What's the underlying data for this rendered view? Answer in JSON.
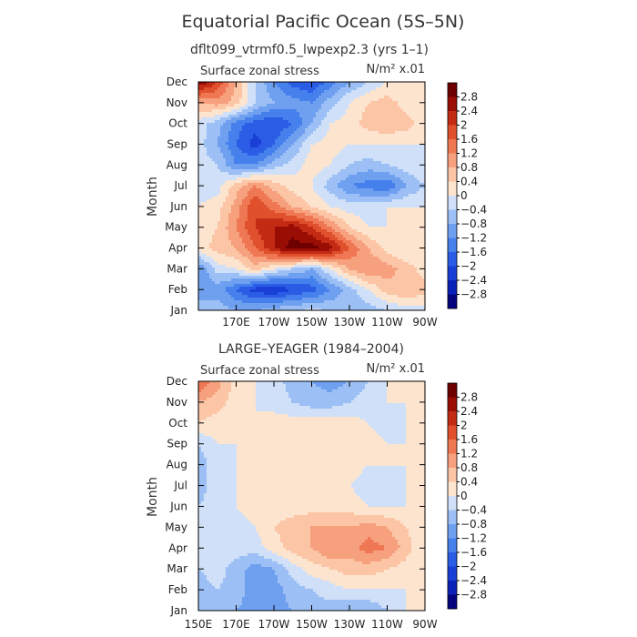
{
  "figure": {
    "title": "Equatorial Pacific Ocean (5S–5N)"
  },
  "chart_data": [
    {
      "type": "heatmap",
      "title": "dflt099_vtrmf0.5_lwpexp2.3 (yrs 1–1)",
      "subtitle": "Surface zonal stress",
      "units_label": "N/m² x.01",
      "ylabel": "Month",
      "xlabel": "",
      "x_ticks": [
        "",
        "170E",
        "170W",
        "150W",
        "130W",
        "110W",
        "90W"
      ],
      "y_ticks": [
        "Jan",
        "Feb",
        "Mar",
        "Apr",
        "May",
        "Jun",
        "Jul",
        "Aug",
        "Sep",
        "Oct",
        "Nov",
        "Dec"
      ],
      "x_range_deg_east": [
        150,
        270
      ],
      "levels": [
        -2.8,
        -2.4,
        -2,
        -1.6,
        -1.2,
        -0.8,
        -0.4,
        0,
        0.4,
        0.8,
        1.2,
        1.6,
        2,
        2.4,
        2.8
      ],
      "level_labels": [
        "2.8",
        "2.4",
        "2",
        "1.6",
        "1.2",
        "0.8",
        "0.4",
        "0",
        "−0.4",
        "−0.8",
        "−1.2",
        "−1.6",
        "−2",
        "−2.4",
        "−2.8"
      ],
      "colors": [
        "#04047e",
        "#0a22b8",
        "#1a3fd6",
        "#2a5ce6",
        "#4680ec",
        "#6fa0f0",
        "#9cc0f5",
        "#cfe0f8",
        "#fde4cf",
        "#fbc5a6",
        "#f6a07e",
        "#ef7753",
        "#e0502d",
        "#c32b14",
        "#990d04",
        "#6e0000"
      ],
      "grid_months": [
        1,
        2,
        3,
        4,
        5,
        6,
        7,
        8,
        9,
        10,
        11,
        12
      ],
      "grid_lon": [
        150,
        160,
        170,
        180,
        190,
        200,
        210,
        220,
        230,
        240,
        250,
        260,
        270
      ],
      "z": [
        [
          -0.4,
          -0.6,
          -0.8,
          -0.8,
          -0.6,
          -0.4,
          -0.3,
          -0.4,
          -0.6,
          -0.6,
          -0.4,
          -0.2,
          -0.2
        ],
        [
          -1.2,
          -1.0,
          -1.6,
          -2.2,
          -2.4,
          -2.0,
          -1.8,
          -1.2,
          -0.6,
          0.0,
          0.6,
          0.8,
          0.6
        ],
        [
          -1.2,
          -0.2,
          0.0,
          0.6,
          0.0,
          -0.4,
          -0.8,
          0.0,
          0.8,
          1.2,
          1.0,
          0.6,
          0.2
        ],
        [
          0.2,
          0.6,
          0.8,
          1.6,
          2.4,
          3.0,
          3.0,
          2.6,
          1.6,
          0.8,
          0.2,
          0.0,
          0.0
        ],
        [
          0.0,
          0.4,
          1.2,
          2.0,
          2.4,
          2.6,
          2.0,
          1.2,
          0.4,
          0.0,
          0.0,
          0.0,
          0.0
        ],
        [
          0.0,
          0.2,
          1.0,
          2.0,
          1.4,
          0.8,
          0.4,
          0.0,
          -0.2,
          -0.2,
          0.0,
          0.0,
          0.0
        ],
        [
          -0.2,
          -0.2,
          0.6,
          1.2,
          0.6,
          0.2,
          0.0,
          -0.6,
          -1.2,
          -1.4,
          -1.6,
          -0.8,
          -0.4
        ],
        [
          -0.2,
          -0.4,
          -1.2,
          -1.2,
          -0.6,
          -0.2,
          0.2,
          0.0,
          -0.4,
          -0.6,
          -0.4,
          -0.2,
          0.0
        ],
        [
          -0.2,
          -0.8,
          -1.6,
          -2.2,
          -1.6,
          -0.8,
          0.0,
          0.2,
          0.0,
          0.0,
          0.0,
          0.0,
          0.0
        ],
        [
          -0.2,
          -0.6,
          -1.4,
          -1.8,
          -2.0,
          -1.6,
          -0.8,
          0.0,
          0.2,
          0.6,
          0.8,
          0.6,
          0.2
        ],
        [
          0.8,
          1.0,
          0.6,
          -0.4,
          -0.8,
          -1.0,
          -1.2,
          -0.6,
          0.0,
          0.4,
          0.6,
          0.2,
          0.0
        ],
        [
          2.8,
          2.0,
          0.8,
          -0.4,
          -1.2,
          -1.8,
          -2.0,
          -1.4,
          -0.8,
          -0.4,
          0.0,
          0.0,
          0.0
        ]
      ]
    },
    {
      "type": "heatmap",
      "title": "LARGE–YEAGER (1984–2004)",
      "subtitle": "Surface zonal stress",
      "units_label": "N/m² x.01",
      "ylabel": "Month",
      "xlabel": "",
      "x_ticks": [
        "150E",
        "170E",
        "170W",
        "150W",
        "130W",
        "110W",
        "90W"
      ],
      "y_ticks": [
        "Jan",
        "Feb",
        "Mar",
        "Apr",
        "May",
        "Jun",
        "Jul",
        "Aug",
        "Sep",
        "Oct",
        "Nov",
        "Dec"
      ],
      "x_range_deg_east": [
        150,
        270
      ],
      "levels": [
        -2.8,
        -2.4,
        -2,
        -1.6,
        -1.2,
        -0.8,
        -0.4,
        0,
        0.4,
        0.8,
        1.2,
        1.6,
        2,
        2.4,
        2.8
      ],
      "level_labels": [
        "2.8",
        "2.4",
        "2",
        "1.6",
        "1.2",
        "0.8",
        "0.4",
        "0",
        "−0.4",
        "−0.8",
        "−1.2",
        "−1.6",
        "−2",
        "−2.4",
        "−2.8"
      ],
      "colors": [
        "#04047e",
        "#0a22b8",
        "#1a3fd6",
        "#2a5ce6",
        "#4680ec",
        "#6fa0f0",
        "#9cc0f5",
        "#cfe0f8",
        "#fde4cf",
        "#fbc5a6",
        "#f6a07e",
        "#ef7753",
        "#e0502d",
        "#c32b14",
        "#990d04",
        "#6e0000"
      ],
      "grid_months": [
        1,
        2,
        3,
        4,
        5,
        6,
        7,
        8,
        9,
        10,
        11,
        12
      ],
      "grid_lon": [
        150,
        160,
        170,
        180,
        190,
        200,
        210,
        220,
        230,
        240,
        250,
        260,
        270
      ],
      "z": [
        [
          -0.4,
          -0.6,
          -0.8,
          -1.0,
          -1.0,
          -0.8,
          -0.6,
          -0.6,
          -0.8,
          -0.8,
          -0.4,
          0.0,
          0.0
        ],
        [
          -0.6,
          -0.4,
          -0.6,
          -1.0,
          -1.0,
          -0.6,
          -0.4,
          -0.2,
          0.0,
          0.0,
          0.0,
          0.0,
          0.0
        ],
        [
          -0.4,
          -0.2,
          -0.6,
          -1.0,
          -0.8,
          -0.2,
          0.2,
          0.4,
          0.6,
          0.6,
          0.4,
          0.2,
          0.0
        ],
        [
          -0.4,
          -0.2,
          -0.2,
          -0.2,
          0.2,
          0.6,
          0.8,
          1.2,
          1.0,
          1.4,
          1.2,
          0.6,
          0.0
        ],
        [
          -0.4,
          -0.2,
          -0.2,
          0.0,
          0.4,
          0.6,
          0.8,
          0.8,
          0.8,
          1.0,
          0.8,
          0.4,
          0.0
        ],
        [
          -0.4,
          -0.2,
          0.0,
          0.2,
          0.2,
          0.2,
          0.2,
          0.2,
          0.2,
          0.0,
          0.0,
          0.0,
          0.0
        ],
        [
          -0.6,
          -0.2,
          0.0,
          0.2,
          0.2,
          0.2,
          0.2,
          0.2,
          0.0,
          -0.2,
          -0.2,
          0.0,
          0.0
        ],
        [
          -0.6,
          -0.2,
          0.0,
          0.2,
          0.2,
          0.2,
          0.2,
          0.2,
          0.2,
          0.0,
          0.0,
          0.0,
          0.0
        ],
        [
          -0.4,
          0.0,
          0.0,
          0.2,
          0.2,
          0.2,
          0.2,
          0.2,
          0.2,
          0.2,
          0.0,
          0.0,
          0.0
        ],
        [
          0.4,
          0.2,
          0.0,
          0.0,
          0.2,
          0.2,
          0.2,
          0.2,
          0.2,
          0.0,
          -0.2,
          0.0,
          0.0
        ],
        [
          0.8,
          0.6,
          0.2,
          0.0,
          -0.2,
          -0.4,
          -0.6,
          -0.6,
          -0.4,
          -0.2,
          0.0,
          0.0,
          0.0
        ],
        [
          1.6,
          1.0,
          0.2,
          0.0,
          -0.2,
          -0.6,
          -0.8,
          -1.0,
          -0.8,
          -0.4,
          0.0,
          0.0,
          0.0
        ]
      ]
    }
  ]
}
